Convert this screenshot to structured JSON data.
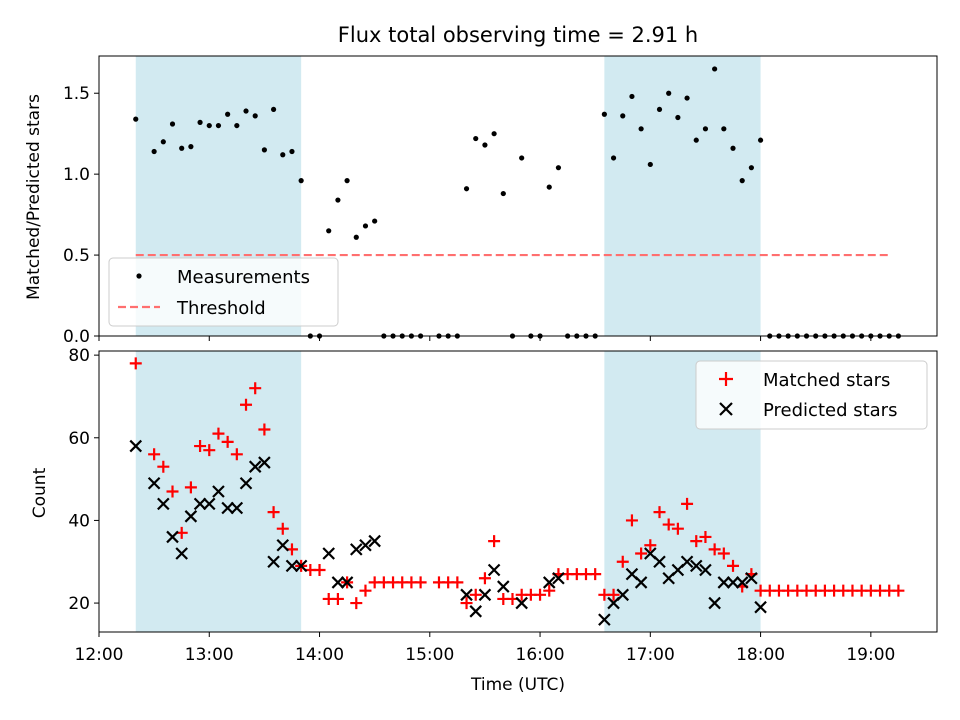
{
  "chart_data": [
    {
      "type": "scatter",
      "title": "Flux total observing time = 2.91 h",
      "xlabel": "",
      "ylabel": "Matched/Predicted stars",
      "xlim": [
        "12:00",
        "19:36"
      ],
      "ylim": [
        0,
        1.73
      ],
      "yticks": [
        0.0,
        0.5,
        1.0,
        1.5
      ],
      "ytick_labels": [
        "0.0",
        "0.5",
        "1.0",
        "1.5"
      ],
      "shaded_regions": [
        [
          "12:20",
          "13:50"
        ],
        [
          "16:35",
          "18:00"
        ]
      ],
      "shade_color": "#add8e6",
      "legend_position": "lower-left",
      "series": [
        {
          "name": "Measurements",
          "marker": "dot",
          "color": "#000000",
          "points": [
            [
              "12:20",
              1.34
            ],
            [
              "12:30",
              1.14
            ],
            [
              "12:35",
              1.2
            ],
            [
              "12:40",
              1.31
            ],
            [
              "12:45",
              1.16
            ],
            [
              "12:50",
              1.17
            ],
            [
              "12:55",
              1.32
            ],
            [
              "13:00",
              1.3
            ],
            [
              "13:05",
              1.3
            ],
            [
              "13:10",
              1.37
            ],
            [
              "13:15",
              1.3
            ],
            [
              "13:20",
              1.39
            ],
            [
              "13:25",
              1.36
            ],
            [
              "13:30",
              1.15
            ],
            [
              "13:35",
              1.4
            ],
            [
              "13:40",
              1.12
            ],
            [
              "13:45",
              1.14
            ],
            [
              "13:50",
              0.96
            ],
            [
              "13:55",
              0.0
            ],
            [
              "14:00",
              0.0
            ],
            [
              "14:05",
              0.65
            ],
            [
              "14:10",
              0.84
            ],
            [
              "14:15",
              0.96
            ],
            [
              "14:20",
              0.61
            ],
            [
              "14:25",
              0.68
            ],
            [
              "14:30",
              0.71
            ],
            [
              "14:35",
              0.0
            ],
            [
              "14:40",
              0.0
            ],
            [
              "14:45",
              0.0
            ],
            [
              "14:50",
              0.0
            ],
            [
              "14:55",
              0.0
            ],
            [
              "15:05",
              0.0
            ],
            [
              "15:10",
              0.0
            ],
            [
              "15:15",
              0.0
            ],
            [
              "15:20",
              0.91
            ],
            [
              "15:25",
              1.22
            ],
            [
              "15:30",
              1.18
            ],
            [
              "15:35",
              1.25
            ],
            [
              "15:40",
              0.88
            ],
            [
              "15:45",
              0.0
            ],
            [
              "15:50",
              1.1
            ],
            [
              "15:55",
              0.0
            ],
            [
              "16:00",
              0.0
            ],
            [
              "16:05",
              0.92
            ],
            [
              "16:10",
              1.04
            ],
            [
              "16:15",
              0.0
            ],
            [
              "16:20",
              0.0
            ],
            [
              "16:25",
              0.0
            ],
            [
              "16:30",
              0.0
            ],
            [
              "16:35",
              1.37
            ],
            [
              "16:40",
              1.1
            ],
            [
              "16:45",
              1.36
            ],
            [
              "16:50",
              1.48
            ],
            [
              "16:55",
              1.28
            ],
            [
              "17:00",
              1.06
            ],
            [
              "17:05",
              1.4
            ],
            [
              "17:10",
              1.5
            ],
            [
              "17:15",
              1.35
            ],
            [
              "17:20",
              1.47
            ],
            [
              "17:25",
              1.21
            ],
            [
              "17:30",
              1.28
            ],
            [
              "17:35",
              1.65
            ],
            [
              "17:40",
              1.28
            ],
            [
              "17:45",
              1.16
            ],
            [
              "17:50",
              0.96
            ],
            [
              "17:55",
              1.04
            ],
            [
              "18:00",
              1.21
            ],
            [
              "18:05",
              0.0
            ],
            [
              "18:10",
              0.0
            ],
            [
              "18:15",
              0.0
            ],
            [
              "18:20",
              0.0
            ],
            [
              "18:25",
              0.0
            ],
            [
              "18:30",
              0.0
            ],
            [
              "18:35",
              0.0
            ],
            [
              "18:40",
              0.0
            ],
            [
              "18:45",
              0.0
            ],
            [
              "18:50",
              0.0
            ],
            [
              "18:55",
              0.0
            ],
            [
              "19:00",
              0.0
            ],
            [
              "19:05",
              0.0
            ],
            [
              "19:10",
              0.0
            ],
            [
              "19:15",
              0.0
            ]
          ]
        },
        {
          "name": "Threshold",
          "type": "line",
          "style": "dashed",
          "color": "#ff6f6f",
          "x": [
            "12:20",
            "19:10"
          ],
          "y": [
            0.5,
            0.5
          ]
        }
      ]
    },
    {
      "type": "scatter",
      "title": "",
      "xlabel": "Time (UTC)",
      "ylabel": "Count",
      "xlim": [
        "12:00",
        "19:36"
      ],
      "ylim": [
        13,
        81
      ],
      "xticks": [
        "12:00",
        "13:00",
        "14:00",
        "15:00",
        "16:00",
        "17:00",
        "18:00",
        "19:00"
      ],
      "xtick_labels": [
        "12:00",
        "13:00",
        "14:00",
        "15:00",
        "16:00",
        "17:00",
        "18:00",
        "19:00"
      ],
      "yticks": [
        20,
        40,
        60,
        80
      ],
      "ytick_labels": [
        "20",
        "40",
        "60",
        "80"
      ],
      "shaded_regions": [
        [
          "12:20",
          "13:50"
        ],
        [
          "16:35",
          "18:00"
        ]
      ],
      "shade_color": "#add8e6",
      "legend_position": "upper-right",
      "series": [
        {
          "name": "Matched stars",
          "marker": "plus",
          "color": "#ff0000",
          "points": [
            [
              "12:20",
              78
            ],
            [
              "12:30",
              56
            ],
            [
              "12:35",
              53
            ],
            [
              "12:40",
              47
            ],
            [
              "12:45",
              37
            ],
            [
              "12:50",
              48
            ],
            [
              "12:55",
              58
            ],
            [
              "13:00",
              57
            ],
            [
              "13:05",
              61
            ],
            [
              "13:10",
              59
            ],
            [
              "13:15",
              56
            ],
            [
              "13:20",
              68
            ],
            [
              "13:25",
              72
            ],
            [
              "13:30",
              62
            ],
            [
              "13:35",
              42
            ],
            [
              "13:40",
              38
            ],
            [
              "13:45",
              33
            ],
            [
              "13:50",
              29
            ],
            [
              "13:55",
              28
            ],
            [
              "14:00",
              28
            ],
            [
              "14:05",
              21
            ],
            [
              "14:10",
              21
            ],
            [
              "14:15",
              25
            ],
            [
              "14:20",
              20
            ],
            [
              "14:25",
              23
            ],
            [
              "14:30",
              25
            ],
            [
              "14:35",
              25
            ],
            [
              "14:40",
              25
            ],
            [
              "14:45",
              25
            ],
            [
              "14:50",
              25
            ],
            [
              "14:55",
              25
            ],
            [
              "15:05",
              25
            ],
            [
              "15:10",
              25
            ],
            [
              "15:15",
              25
            ],
            [
              "15:20",
              20
            ],
            [
              "15:25",
              22
            ],
            [
              "15:30",
              26
            ],
            [
              "15:35",
              35
            ],
            [
              "15:40",
              21
            ],
            [
              "15:45",
              21
            ],
            [
              "15:50",
              22
            ],
            [
              "15:55",
              22
            ],
            [
              "16:00",
              22
            ],
            [
              "16:05",
              23
            ],
            [
              "16:10",
              27
            ],
            [
              "16:15",
              27
            ],
            [
              "16:20",
              27
            ],
            [
              "16:25",
              27
            ],
            [
              "16:30",
              27
            ],
            [
              "16:35",
              22
            ],
            [
              "16:40",
              22
            ],
            [
              "16:45",
              30
            ],
            [
              "16:50",
              40
            ],
            [
              "16:55",
              32
            ],
            [
              "17:00",
              34
            ],
            [
              "17:05",
              42
            ],
            [
              "17:10",
              39
            ],
            [
              "17:15",
              38
            ],
            [
              "17:20",
              44
            ],
            [
              "17:25",
              35
            ],
            [
              "17:30",
              36
            ],
            [
              "17:35",
              33
            ],
            [
              "17:40",
              32
            ],
            [
              "17:45",
              29
            ],
            [
              "17:50",
              24
            ],
            [
              "17:55",
              27
            ],
            [
              "18:00",
              23
            ],
            [
              "18:05",
              23
            ],
            [
              "18:10",
              23
            ],
            [
              "18:15",
              23
            ],
            [
              "18:20",
              23
            ],
            [
              "18:25",
              23
            ],
            [
              "18:30",
              23
            ],
            [
              "18:35",
              23
            ],
            [
              "18:40",
              23
            ],
            [
              "18:45",
              23
            ],
            [
              "18:50",
              23
            ],
            [
              "18:55",
              23
            ],
            [
              "19:00",
              23
            ],
            [
              "19:05",
              23
            ],
            [
              "19:10",
              23
            ],
            [
              "19:15",
              23
            ]
          ]
        },
        {
          "name": "Predicted stars",
          "marker": "x",
          "color": "#000000",
          "points": [
            [
              "12:20",
              58
            ],
            [
              "12:30",
              49
            ],
            [
              "12:35",
              44
            ],
            [
              "12:40",
              36
            ],
            [
              "12:45",
              32
            ],
            [
              "12:50",
              41
            ],
            [
              "12:55",
              44
            ],
            [
              "13:00",
              44
            ],
            [
              "13:05",
              47
            ],
            [
              "13:10",
              43
            ],
            [
              "13:15",
              43
            ],
            [
              "13:20",
              49
            ],
            [
              "13:25",
              53
            ],
            [
              "13:30",
              54
            ],
            [
              "13:35",
              30
            ],
            [
              "13:40",
              34
            ],
            [
              "13:45",
              29
            ],
            [
              "13:50",
              29
            ],
            [
              "14:05",
              32
            ],
            [
              "14:10",
              25
            ],
            [
              "14:15",
              25
            ],
            [
              "14:20",
              33
            ],
            [
              "14:25",
              34
            ],
            [
              "14:30",
              35
            ],
            [
              "15:20",
              22
            ],
            [
              "15:25",
              18
            ],
            [
              "15:30",
              22
            ],
            [
              "15:35",
              28
            ],
            [
              "15:40",
              24
            ],
            [
              "15:50",
              20
            ],
            [
              "16:05",
              25
            ],
            [
              "16:10",
              26
            ],
            [
              "16:35",
              16
            ],
            [
              "16:40",
              20
            ],
            [
              "16:45",
              22
            ],
            [
              "16:50",
              27
            ],
            [
              "16:55",
              25
            ],
            [
              "17:00",
              32
            ],
            [
              "17:05",
              30
            ],
            [
              "17:10",
              26
            ],
            [
              "17:15",
              28
            ],
            [
              "17:20",
              30
            ],
            [
              "17:25",
              29
            ],
            [
              "17:30",
              28
            ],
            [
              "17:35",
              20
            ],
            [
              "17:40",
              25
            ],
            [
              "17:45",
              25
            ],
            [
              "17:50",
              25
            ],
            [
              "17:55",
              26
            ],
            [
              "18:00",
              19
            ]
          ]
        }
      ]
    }
  ]
}
